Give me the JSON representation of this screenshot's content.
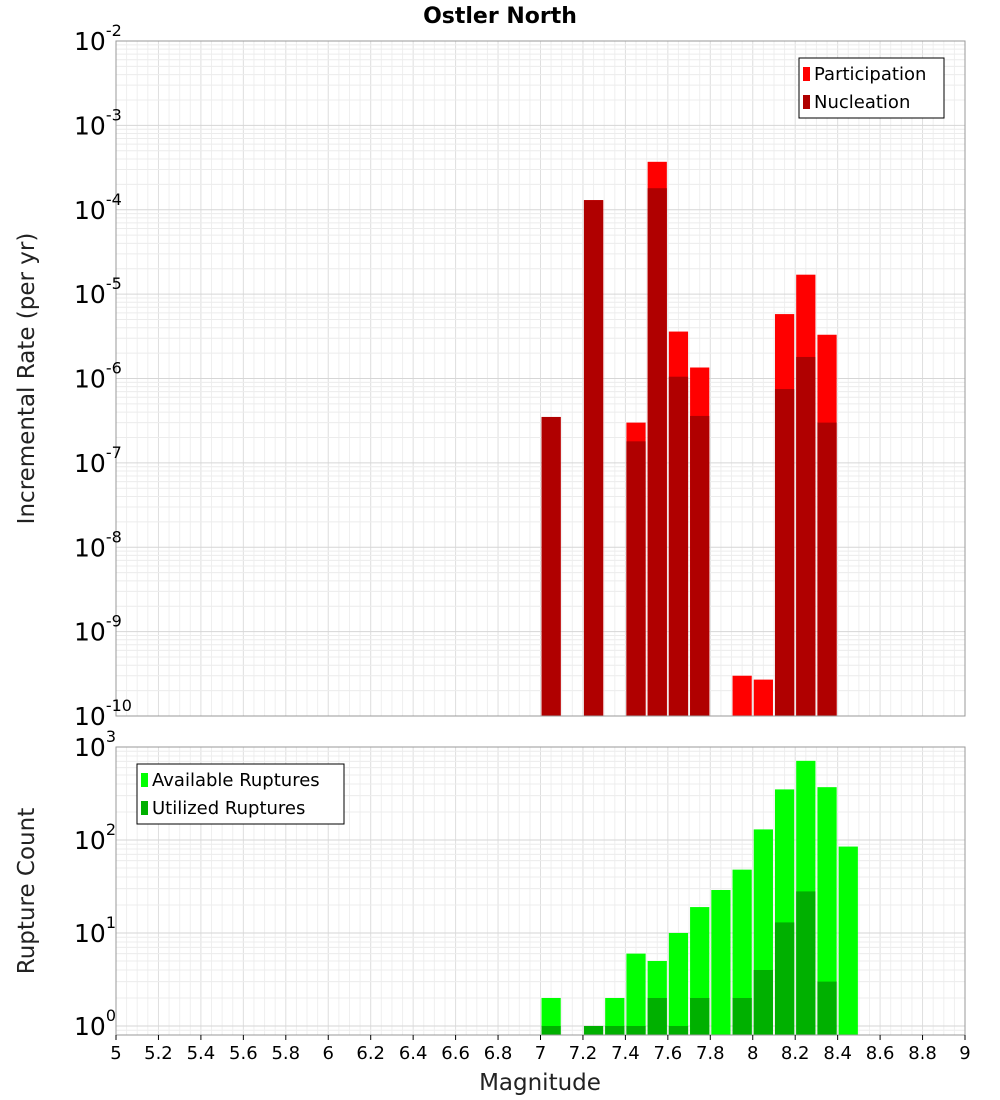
{
  "chart_data": [
    {
      "type": "bar",
      "title": "Ostler North",
      "xlabel": "",
      "ylabel": "Incremental Rate (per yr)",
      "yscale": "log",
      "xlim": [
        5,
        9
      ],
      "ylim": [
        1e-10,
        0.01
      ],
      "y_tick_exponents": [
        "-10",
        "-9",
        "-8",
        "-7",
        "-6",
        "-5",
        "-4",
        "-3",
        "-2"
      ],
      "grid": true,
      "legend_position": "top-right",
      "series": [
        {
          "name": "Participation",
          "color": "#ff0000",
          "points": [
            {
              "x": 7.05,
              "y": 3.5e-07
            },
            {
              "x": 7.25,
              "y": 0.00013
            },
            {
              "x": 7.45,
              "y": 3e-07
            },
            {
              "x": 7.55,
              "y": 0.00037
            },
            {
              "x": 7.65,
              "y": 3.6e-06
            },
            {
              "x": 7.75,
              "y": 1.35e-06
            },
            {
              "x": 7.95,
              "y": 3e-10
            },
            {
              "x": 8.05,
              "y": 2.7e-10
            },
            {
              "x": 8.15,
              "y": 5.8e-06
            },
            {
              "x": 8.25,
              "y": 1.7e-05
            },
            {
              "x": 8.35,
              "y": 3.3e-06
            }
          ]
        },
        {
          "name": "Nucleation",
          "color": "#b00000",
          "points": [
            {
              "x": 7.05,
              "y": 3.5e-07
            },
            {
              "x": 7.25,
              "y": 0.00013
            },
            {
              "x": 7.45,
              "y": 1.8e-07
            },
            {
              "x": 7.55,
              "y": 0.00018
            },
            {
              "x": 7.65,
              "y": 1.05e-06
            },
            {
              "x": 7.75,
              "y": 3.6e-07
            },
            {
              "x": 8.15,
              "y": 7.5e-07
            },
            {
              "x": 8.25,
              "y": 1.8e-06
            },
            {
              "x": 8.35,
              "y": 3e-07
            }
          ]
        }
      ]
    },
    {
      "type": "bar",
      "title": "",
      "xlabel": "Magnitude",
      "ylabel": "Rupture Count",
      "yscale": "log",
      "xlim": [
        5,
        9
      ],
      "ylim": [
        0.8,
        1000
      ],
      "x_ticks": [
        "5",
        "5.2",
        "5.4",
        "5.6",
        "5.8",
        "6",
        "6.2",
        "6.4",
        "6.6",
        "6.8",
        "7",
        "7.2",
        "7.4",
        "7.6",
        "7.8",
        "8",
        "8.2",
        "8.4",
        "8.6",
        "8.8",
        "9"
      ],
      "y_tick_exponents": [
        "0",
        "1",
        "2",
        "3"
      ],
      "grid": true,
      "legend_position": "top-left",
      "series": [
        {
          "name": "Available Ruptures",
          "color": "#00ff00",
          "points": [
            {
              "x": 7.05,
              "y": 2
            },
            {
              "x": 7.35,
              "y": 2
            },
            {
              "x": 7.45,
              "y": 6
            },
            {
              "x": 7.55,
              "y": 5
            },
            {
              "x": 7.65,
              "y": 10
            },
            {
              "x": 7.75,
              "y": 19
            },
            {
              "x": 7.85,
              "y": 29
            },
            {
              "x": 7.95,
              "y": 48
            },
            {
              "x": 8.05,
              "y": 130
            },
            {
              "x": 8.15,
              "y": 350
            },
            {
              "x": 8.25,
              "y": 710
            },
            {
              "x": 8.35,
              "y": 370
            },
            {
              "x": 8.45,
              "y": 85
            }
          ]
        },
        {
          "name": "Utilized Ruptures",
          "color": "#00b000",
          "points": [
            {
              "x": 7.05,
              "y": 1
            },
            {
              "x": 7.25,
              "y": 1
            },
            {
              "x": 7.35,
              "y": 1
            },
            {
              "x": 7.45,
              "y": 1
            },
            {
              "x": 7.55,
              "y": 2
            },
            {
              "x": 7.65,
              "y": 1
            },
            {
              "x": 7.75,
              "y": 2
            },
            {
              "x": 7.95,
              "y": 2
            },
            {
              "x": 8.05,
              "y": 4
            },
            {
              "x": 8.15,
              "y": 13
            },
            {
              "x": 8.25,
              "y": 28
            },
            {
              "x": 8.35,
              "y": 3
            }
          ]
        }
      ]
    }
  ]
}
